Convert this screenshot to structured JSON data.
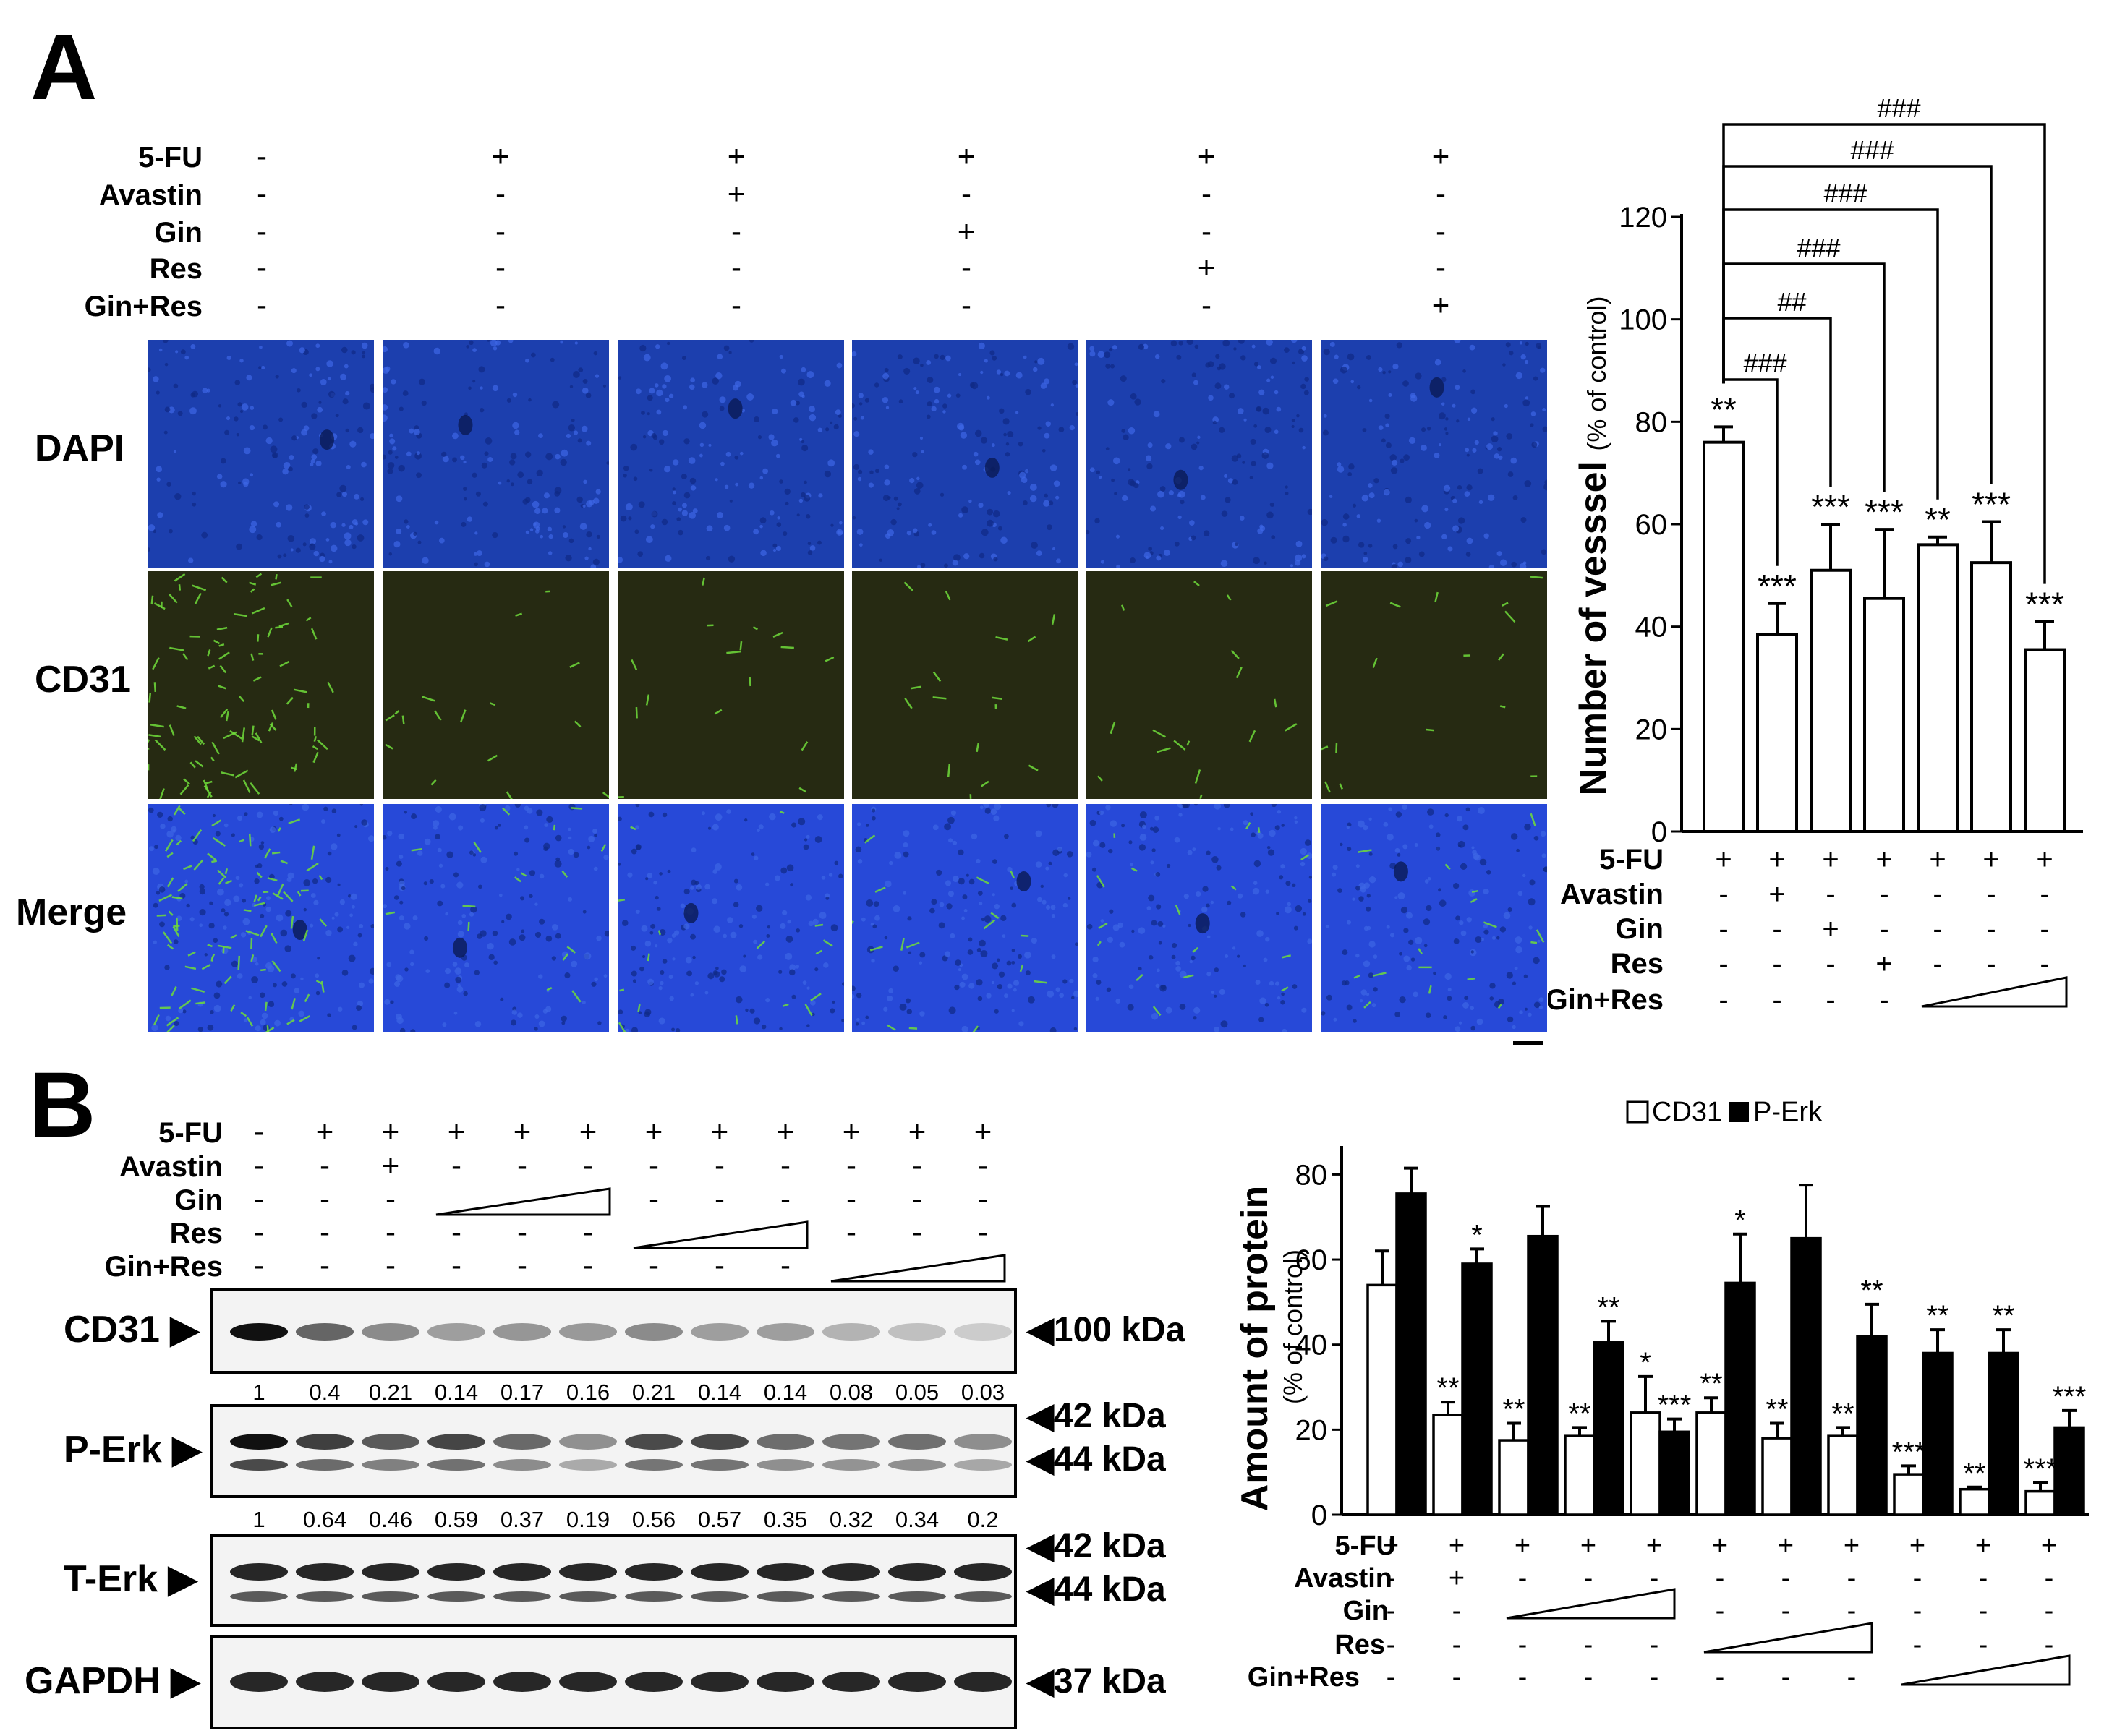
{
  "panel_a": {
    "letter": "A",
    "conditions": [
      "5-FU",
      "Avastin",
      "Gin",
      "Res",
      "Gin+Res"
    ],
    "condition_signs": [
      [
        "-",
        "+",
        "+",
        "+",
        "+",
        "+"
      ],
      [
        "-",
        "-",
        "+",
        "-",
        "-",
        "-"
      ],
      [
        "-",
        "-",
        "-",
        "+",
        "-",
        "-"
      ],
      [
        "-",
        "-",
        "-",
        "-",
        "+",
        "-"
      ],
      [
        "-",
        "-",
        "-",
        "-",
        "-",
        "+"
      ]
    ],
    "image_rows": [
      "DAPI",
      "CD31",
      "Merge"
    ],
    "colors": {
      "dapi": "#1c3fae",
      "cd31_bg": "#262a12",
      "cd31_signal": "#6fdc3a",
      "merge": "#2749d8"
    }
  },
  "panel_b": {
    "letter": "B",
    "conditions": [
      "5-FU",
      "Avastin",
      "Gin",
      "Res",
      "Gin+Res"
    ],
    "signs": {
      "5-FU": [
        "-",
        "+",
        "+",
        "+",
        "+",
        "+",
        "+",
        "+",
        "+",
        "+",
        "+",
        "+"
      ],
      "Avastin": [
        "-",
        "-",
        "+",
        "-",
        "-",
        "-",
        "-",
        "-",
        "-",
        "-",
        "-",
        "-"
      ],
      "Gin": [
        "-",
        "-",
        "-",
        "",
        "",
        "",
        "-",
        "-",
        "-",
        "-",
        "-",
        "-"
      ],
      "Res": [
        "-",
        "-",
        "-",
        "-",
        "-",
        "-",
        "",
        "",
        "",
        "-",
        "-",
        "-"
      ],
      "Gin+Res": [
        "-",
        "-",
        "-",
        "-",
        "-",
        "-",
        "-",
        "-",
        "-",
        "",
        "",
        ""
      ]
    },
    "blots": [
      {
        "label": "CD31",
        "kda": [
          "100 kDa"
        ]
      },
      {
        "label": "P-Erk",
        "kda": [
          "42 kDa",
          "44 kDa"
        ]
      },
      {
        "label": "T-Erk",
        "kda": [
          "42 kDa",
          "44 kDa"
        ]
      },
      {
        "label": "GAPDH",
        "kda": [
          "37 kDa"
        ]
      }
    ],
    "cd31_quant": [
      "1",
      "0.4",
      "0.21",
      "0.14",
      "0.17",
      "0.16",
      "0.21",
      "0.14",
      "0.14",
      "0.08",
      "0.05",
      "0.03"
    ],
    "perk_quant": [
      "1",
      "0.64",
      "0.46",
      "0.59",
      "0.37",
      "0.19",
      "0.56",
      "0.57",
      "0.35",
      "0.32",
      "0.34",
      "0.2"
    ],
    "cd31_band_intensity": [
      1,
      0.4,
      0.21,
      0.14,
      0.17,
      0.16,
      0.21,
      0.14,
      0.14,
      0.08,
      0.05,
      0.03
    ],
    "perk_band_intensity": [
      1,
      0.64,
      0.46,
      0.59,
      0.37,
      0.19,
      0.56,
      0.57,
      0.35,
      0.32,
      0.34,
      0.2
    ]
  },
  "chart_data": [
    {
      "type": "bar",
      "ylabel_main": "Number of vesssel",
      "ylabel_sub": "(% of control)",
      "ylim": [
        0,
        120
      ],
      "yticks": [
        0,
        20,
        40,
        60,
        80,
        100,
        120
      ],
      "values": [
        76,
        38.5,
        51,
        45.5,
        56,
        52.5,
        35.5
      ],
      "errors": [
        3,
        6,
        9,
        13.5,
        1.5,
        8,
        5.5
      ],
      "significance": [
        "**",
        "***",
        "***",
        "***",
        "**",
        "***",
        "***"
      ],
      "brackets": [
        "###",
        "##",
        "###",
        "###",
        "###",
        "###"
      ],
      "conditions": [
        "5-FU",
        "Avastin",
        "Gin",
        "Res",
        "Gin+Res"
      ],
      "signs": {
        "5-FU": [
          "+",
          "+",
          "+",
          "+",
          "+",
          "+",
          "+"
        ],
        "Avastin": [
          "-",
          "+",
          "-",
          "-",
          "-",
          "-",
          "-"
        ],
        "Gin": [
          "-",
          "-",
          "+",
          "-",
          "-",
          "-",
          "-"
        ],
        "Res": [
          "-",
          "-",
          "-",
          "+",
          "-",
          "-",
          "-"
        ],
        "Gin+Res": [
          "-",
          "-",
          "-",
          "-",
          "",
          "",
          ""
        ]
      },
      "grid": false
    },
    {
      "type": "bar",
      "ylabel_main": "Amount of protein",
      "ylabel_sub": "(% of control)",
      "ylim": [
        0,
        85
      ],
      "yticks": [
        0,
        20,
        40,
        60,
        80
      ],
      "series": [
        {
          "name": "CD31",
          "color": "#ffffff",
          "values": [
            54,
            23.5,
            17.5,
            18.5,
            24,
            24,
            18,
            18.5,
            9.5,
            6,
            5.5
          ],
          "errors": [
            8,
            3,
            4,
            2,
            8.5,
            3.5,
            3.5,
            2,
            2,
            0.5,
            2
          ],
          "significance": [
            "",
            "**",
            "**",
            "**",
            "*",
            "**",
            "**",
            "**",
            "***",
            "**",
            "***"
          ]
        },
        {
          "name": "P-Erk",
          "color": "#000000",
          "values": [
            75.5,
            59,
            65.5,
            40.5,
            19.5,
            54.5,
            65,
            42,
            38,
            38,
            20.5
          ],
          "errors": [
            6,
            3.5,
            7,
            5,
            3,
            11.5,
            12.5,
            7.5,
            5.5,
            5.5,
            4
          ],
          "significance": [
            "",
            "*",
            "",
            "**",
            "***",
            "*",
            "",
            "**",
            "**",
            "**",
            "***"
          ]
        }
      ],
      "conditions": [
        "5-FU",
        "Avastin",
        "Gin",
        "Res",
        "Gin+Res"
      ],
      "signs": {
        "5-FU": [
          "+",
          "+",
          "+",
          "+",
          "+",
          "+",
          "+",
          "+",
          "+",
          "+",
          "+"
        ],
        "Avastin": [
          "-",
          "+",
          "-",
          "-",
          "-",
          "-",
          "-",
          "-",
          "-",
          "-",
          "-"
        ],
        "Gin": [
          "-",
          "-",
          "",
          "",
          "",
          "-",
          "-",
          "-",
          "-",
          "-",
          "-"
        ],
        "Res": [
          "-",
          "-",
          "-",
          "-",
          "-",
          "",
          "",
          "",
          "-",
          "-",
          "-"
        ],
        "Gin+Res": [
          "-",
          "-",
          "-",
          "-",
          "-",
          "-",
          "-",
          "-",
          "",
          "",
          ""
        ]
      },
      "legend_position": "top",
      "grid": false
    }
  ]
}
